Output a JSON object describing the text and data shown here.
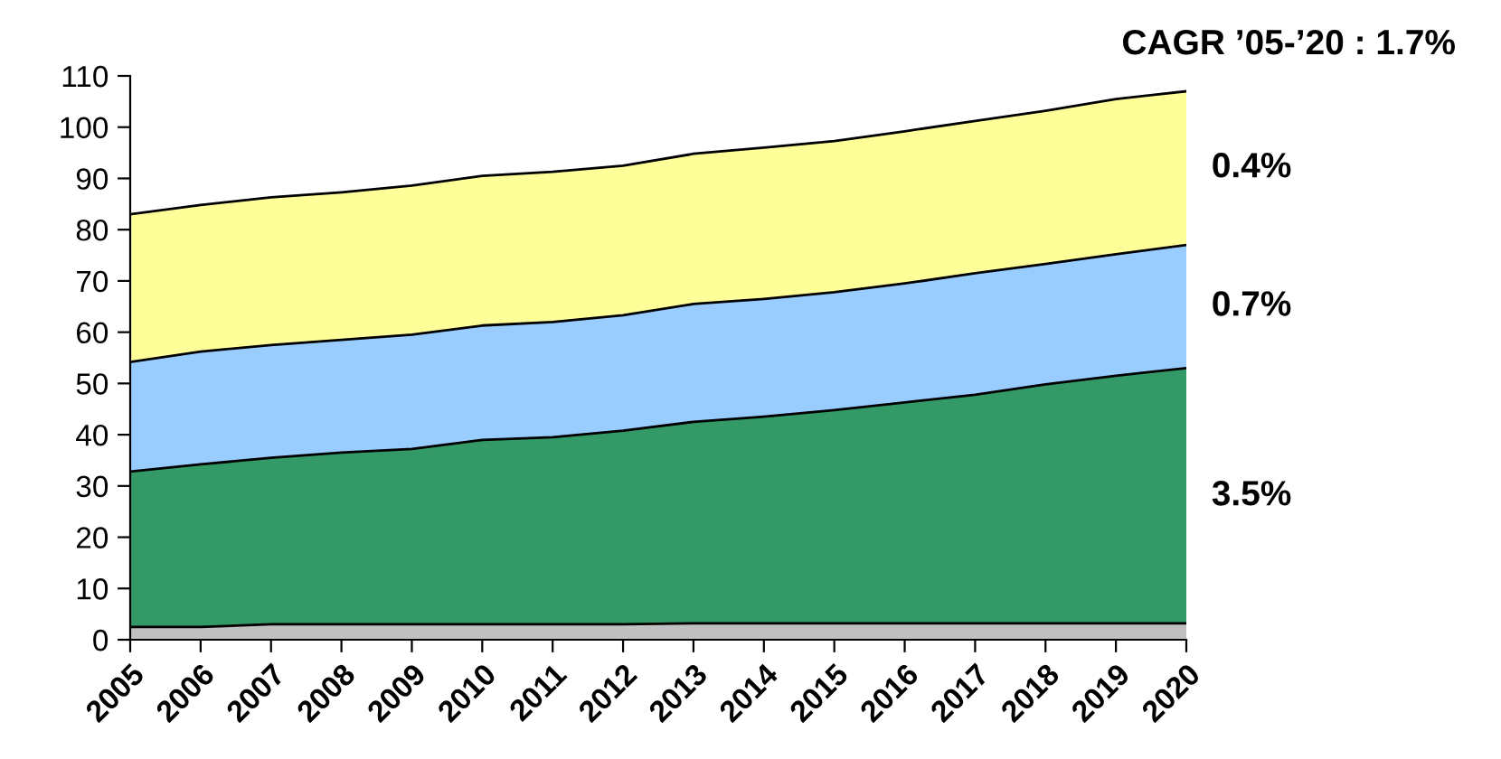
{
  "chart_data": {
    "type": "area",
    "stacked": true,
    "title": "CAGR ’05-’20 : 1.7%",
    "categories": [
      "2005",
      "2006",
      "2007",
      "2008",
      "2009",
      "2010",
      "2011",
      "2012",
      "2013",
      "2014",
      "2015",
      "2016",
      "2017",
      "2018",
      "2019",
      "2020"
    ],
    "series": [
      {
        "color": "#c0c0c0",
        "values": [
          2.5,
          2.5,
          3,
          3,
          3,
          3,
          3,
          3,
          3.2,
          3.2,
          3.2,
          3.2,
          3.2,
          3.2,
          3.2,
          3.2
        ]
      },
      {
        "color": "#339966",
        "values": [
          30.3,
          31.7,
          32.5,
          33.5,
          34.2,
          36,
          36.5,
          37.8,
          39.3,
          40.3,
          41.6,
          43.1,
          44.6,
          46.6,
          48.3,
          49.8
        ]
      },
      {
        "color": "#99ccff",
        "values": [
          21.4,
          22,
          22,
          22,
          22.3,
          22.3,
          22.5,
          22.5,
          23,
          23,
          23,
          23.2,
          23.7,
          23.5,
          23.7,
          24
        ]
      },
      {
        "color": "#ffff99",
        "values": [
          28.8,
          28.6,
          28.8,
          28.8,
          29.1,
          29.2,
          29.3,
          29.2,
          29.3,
          29.5,
          29.5,
          29.7,
          29.7,
          29.9,
          30.3,
          30
        ]
      }
    ],
    "ylim": [
      0,
      110
    ],
    "yticks": [
      0,
      10,
      20,
      30,
      40,
      50,
      60,
      70,
      80,
      90,
      100,
      110
    ],
    "annotations": [
      {
        "text": "0.4%",
        "x": "2020",
        "y": 92
      },
      {
        "text": "0.7%",
        "x": "2020",
        "y": 65
      },
      {
        "text": "3.5%",
        "x": "2020",
        "y": 28
      }
    ],
    "grid": false,
    "legend": false
  }
}
